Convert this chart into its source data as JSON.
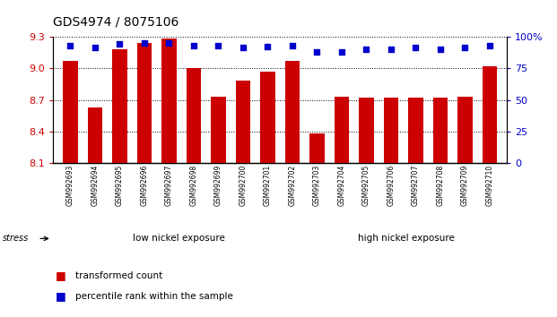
{
  "title": "GDS4974 / 8075106",
  "samples": [
    "GSM992693",
    "GSM992694",
    "GSM992695",
    "GSM992696",
    "GSM992697",
    "GSM992698",
    "GSM992699",
    "GSM992700",
    "GSM992701",
    "GSM992702",
    "GSM992703",
    "GSM992704",
    "GSM992705",
    "GSM992706",
    "GSM992707",
    "GSM992708",
    "GSM992709",
    "GSM992710"
  ],
  "transformed_count": [
    9.07,
    8.63,
    9.18,
    9.24,
    9.28,
    9.0,
    8.73,
    8.88,
    8.97,
    9.07,
    8.38,
    8.73,
    8.72,
    8.72,
    8.72,
    8.72,
    8.73,
    9.02
  ],
  "percentile_rank": [
    93,
    91,
    94,
    95,
    95,
    93,
    93,
    91,
    92,
    93,
    88,
    88,
    90,
    90,
    91,
    90,
    91,
    93
  ],
  "ylim_left": [
    8.1,
    9.3
  ],
  "ylim_right": [
    0,
    100
  ],
  "yticks_left": [
    8.1,
    8.4,
    8.7,
    9.0,
    9.3
  ],
  "yticks_right": [
    0,
    25,
    50,
    75,
    100
  ],
  "bar_color": "#cc0000",
  "dot_color": "#0000cc",
  "group1_label": "low nickel exposure",
  "group2_label": "high nickel exposure",
  "group1_color": "#99ee99",
  "group2_color": "#44cc44",
  "group1_count": 10,
  "group2_count": 8,
  "stress_label": "stress",
  "legend_bar": "transformed count",
  "legend_dot": "percentile rank within the sample",
  "xtick_bg_color": "#c8c8c8",
  "plot_bg": "#ffffff",
  "title_fontsize": 10,
  "axis_label_color_left": "#cc0000",
  "axis_label_color_right": "#0000cc",
  "ytick_labels_right": [
    "0",
    "25",
    "50",
    "75",
    "100%"
  ]
}
